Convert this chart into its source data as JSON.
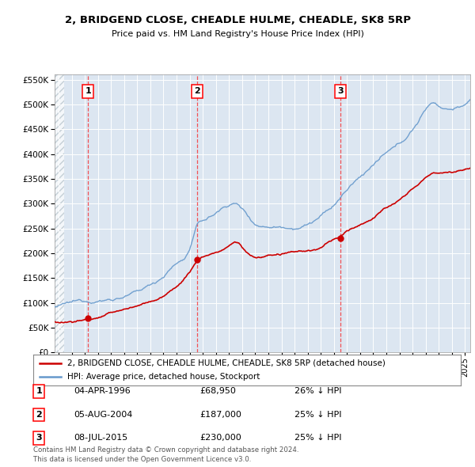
{
  "title1": "2, BRIDGEND CLOSE, CHEADLE HULME, CHEADLE, SK8 5RP",
  "title2": "Price paid vs. HM Land Registry's House Price Index (HPI)",
  "purchases": [
    {
      "date_num": 1996.25,
      "price": 68950,
      "label": "1",
      "date_str": "04-APR-1996",
      "pct": "26% ↓ HPI"
    },
    {
      "date_num": 2004.58,
      "price": 187000,
      "label": "2",
      "date_str": "05-AUG-2004",
      "pct": "25% ↓ HPI"
    },
    {
      "date_num": 2015.5,
      "price": 230000,
      "label": "3",
      "date_str": "08-JUL-2015",
      "pct": "25% ↓ HPI"
    }
  ],
  "legend_line1": "2, BRIDGEND CLOSE, CHEADLE HULME, CHEADLE, SK8 5RP (detached house)",
  "legend_line2": "HPI: Average price, detached house, Stockport",
  "footnote1": "Contains HM Land Registry data © Crown copyright and database right 2024.",
  "footnote2": "This data is licensed under the Open Government Licence v3.0.",
  "hpi_color": "#6699cc",
  "sale_color": "#cc0000",
  "background_plot": "#dce6f1",
  "ylim": [
    0,
    560000
  ],
  "xlim_start": 1993.7,
  "xlim_end": 2025.4,
  "hpi_knots_x": [
    1993.7,
    1994.0,
    1995.0,
    1996.0,
    1997.0,
    1998.0,
    1999.0,
    2000.0,
    2001.0,
    2002.0,
    2003.0,
    2004.0,
    2004.58,
    2005.0,
    2006.0,
    2007.0,
    2007.5,
    2008.0,
    2009.0,
    2010.0,
    2011.0,
    2012.0,
    2013.0,
    2014.0,
    2015.0,
    2016.0,
    2017.0,
    2018.0,
    2019.0,
    2020.0,
    2021.0,
    2022.0,
    2022.5,
    2023.0,
    2024.0,
    2025.0,
    2025.4
  ],
  "hpi_knots_y": [
    92000,
    93000,
    97000,
    100000,
    104000,
    108000,
    115000,
    122000,
    135000,
    155000,
    180000,
    210000,
    255000,
    265000,
    280000,
    298000,
    300000,
    290000,
    262000,
    258000,
    260000,
    262000,
    270000,
    285000,
    305000,
    335000,
    360000,
    385000,
    405000,
    420000,
    450000,
    490000,
    505000,
    500000,
    495000,
    505000,
    510000
  ],
  "sale_knots_x": [
    1993.7,
    1995.5,
    1996.0,
    1996.25,
    1997.0,
    1998.0,
    1999.0,
    2000.0,
    2001.0,
    2002.0,
    2003.0,
    2004.0,
    2004.58,
    2005.0,
    2006.0,
    2007.0,
    2007.8,
    2008.0,
    2009.0,
    2010.0,
    2011.0,
    2012.0,
    2013.0,
    2014.0,
    2015.0,
    2015.5,
    2016.0,
    2017.0,
    2018.0,
    2019.0,
    2020.0,
    2021.0,
    2022.0,
    2023.0,
    2024.0,
    2025.0,
    2025.4
  ],
  "sale_knots_y": [
    62000,
    66000,
    68000,
    68950,
    73000,
    80000,
    88000,
    95000,
    105000,
    115000,
    135000,
    165000,
    187000,
    195000,
    205000,
    218000,
    222000,
    215000,
    195000,
    198000,
    200000,
    202000,
    205000,
    210000,
    226000,
    230000,
    240000,
    255000,
    270000,
    290000,
    305000,
    325000,
    350000,
    360000,
    365000,
    370000,
    372000
  ]
}
